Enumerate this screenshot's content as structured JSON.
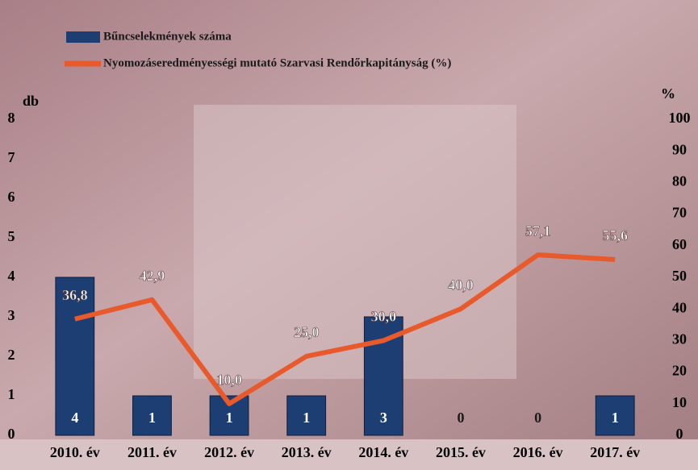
{
  "chart_data": {
    "type": "bar",
    "categories": [
      "2010. év",
      "2011. év",
      "2012. év",
      "2013. év",
      "2014. év",
      "2015. év",
      "2016. év",
      "2017. év"
    ],
    "series": [
      {
        "name": "Bűncselekmények száma",
        "type": "bar",
        "color": "#1d3e72",
        "values": [
          4,
          1,
          1,
          1,
          3,
          0,
          0,
          1
        ]
      },
      {
        "name": "Nyomozáseredményességi mutató Szarvasi Rendőrkapitányság (%)",
        "type": "line",
        "axis": "y2",
        "color": "#e8592c",
        "values": [
          36.8,
          42.9,
          10.0,
          25.0,
          30.0,
          40.0,
          57.1,
          55.6
        ],
        "value_labels": [
          "36,8",
          "42,9",
          "10,0",
          "25,0",
          "30,0",
          "40,0",
          "57,1",
          "55,6"
        ]
      }
    ],
    "y_label": "db",
    "ylim": [
      0,
      8
    ],
    "yticks": [
      0,
      1,
      2,
      3,
      4,
      5,
      6,
      7,
      8
    ],
    "y2_label": "%",
    "y2lim": [
      0,
      100
    ],
    "y2ticks": [
      0,
      10,
      20,
      30,
      40,
      50,
      60,
      70,
      80,
      90,
      100
    ]
  }
}
